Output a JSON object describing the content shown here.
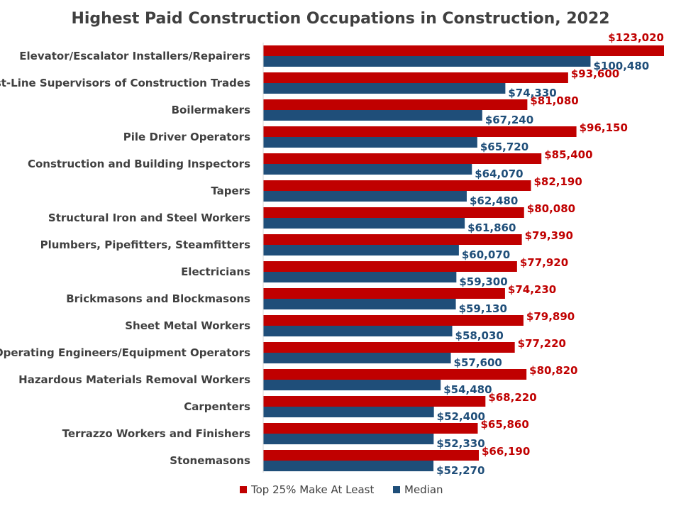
{
  "chart_data": {
    "type": "bar",
    "orientation": "horizontal",
    "title": "Highest Paid Construction Occupations in Construction, 2022",
    "categories": [
      "Elevator/Escalator Installers/Repairers",
      "First-Line Supervisors of Construction Trades",
      "Boilermakers",
      "Pile Driver Operators",
      "Construction and Building Inspectors",
      "Tapers",
      "Structural Iron and Steel Workers",
      "Plumbers, Pipefitters, Steamfitters",
      "Electricians",
      "Brickmasons and Blockmasons",
      "Sheet Metal Workers",
      "Operating Engineers/Equipment Operators",
      "Hazardous Materials Removal Workers",
      "Carpenters",
      "Terrazzo Workers and Finishers",
      "Stonemasons"
    ],
    "series": [
      {
        "name": "Top 25% Make At Least",
        "color": "#c00000",
        "values": [
          123020,
          93600,
          81080,
          96150,
          85400,
          82190,
          80080,
          79390,
          77920,
          74230,
          79890,
          77220,
          80820,
          68220,
          65860,
          66190
        ],
        "labels": [
          "$123,020",
          "$93,600",
          "$81,080",
          "$96,150",
          "$85,400",
          "$82,190",
          "$80,080",
          "$79,390",
          "$77,920",
          "$74,230",
          "$79,890",
          "$77,220",
          "$80,820",
          "$68,220",
          "$65,860",
          "$66,190"
        ]
      },
      {
        "name": "Median",
        "color": "#1f4e79",
        "values": [
          100480,
          74330,
          67240,
          65720,
          64070,
          62480,
          61860,
          60070,
          59300,
          59130,
          58030,
          57600,
          54480,
          52400,
          52330,
          52270
        ],
        "labels": [
          "$100,480",
          "$74,330",
          "$67,240",
          "$65,720",
          "$64,070",
          "$62,480",
          "$61,860",
          "$60,070",
          "$59,300",
          "$59,130",
          "$58,030",
          "$57,600",
          "$54,480",
          "$52,400",
          "$52,330",
          "$52,270"
        ]
      }
    ],
    "xlim": [
      0,
      123020
    ],
    "grid": false,
    "legend_position": "bottom"
  }
}
